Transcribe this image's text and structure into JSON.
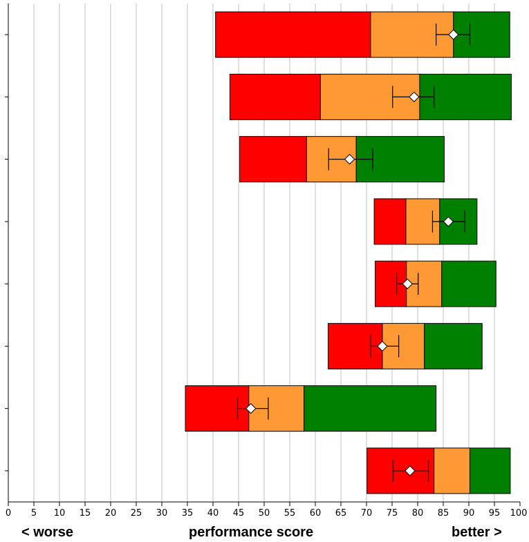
{
  "chart_data": {
    "type": "bar",
    "orientation": "horizontal",
    "stacked": true,
    "xlim": [
      0,
      100
    ],
    "x_tick_step": 5,
    "grid": true,
    "xlabel": "performance score",
    "left_annotation": "< worse",
    "right_annotation": "better >",
    "segment_colors": {
      "low": "#ff0000",
      "mid": "#ff9933",
      "high": "#008000"
    },
    "rows": [
      {
        "start": 40.5,
        "low_end": 70.8,
        "mid_end": 87.0,
        "high_end": 98.0,
        "score": 87.0,
        "ci": [
          83.6,
          90.2
        ]
      },
      {
        "start": 43.3,
        "low_end": 61.0,
        "mid_end": 80.4,
        "high_end": 98.3,
        "score": 79.3,
        "ci": [
          75.1,
          83.2
        ]
      },
      {
        "start": 45.2,
        "low_end": 58.3,
        "mid_end": 68.0,
        "high_end": 85.2,
        "score": 66.7,
        "ci": [
          62.6,
          71.2
        ]
      },
      {
        "start": 71.5,
        "low_end": 77.7,
        "mid_end": 84.3,
        "high_end": 91.6,
        "score": 86.0,
        "ci": [
          82.9,
          89.2
        ]
      },
      {
        "start": 71.7,
        "low_end": 77.8,
        "mid_end": 84.7,
        "high_end": 95.3,
        "score": 78.0,
        "ci": [
          75.9,
          80.1
        ]
      },
      {
        "start": 62.5,
        "low_end": 73.1,
        "mid_end": 81.3,
        "high_end": 92.6,
        "score": 73.1,
        "ci": [
          70.8,
          76.3
        ]
      },
      {
        "start": 34.6,
        "low_end": 47.0,
        "mid_end": 57.8,
        "high_end": 83.6,
        "score": 47.4,
        "ci": [
          44.8,
          50.8
        ]
      },
      {
        "start": 70.1,
        "low_end": 83.2,
        "mid_end": 90.2,
        "high_end": 98.1,
        "score": 78.5,
        "ci": [
          75.2,
          82.1
        ]
      }
    ]
  }
}
